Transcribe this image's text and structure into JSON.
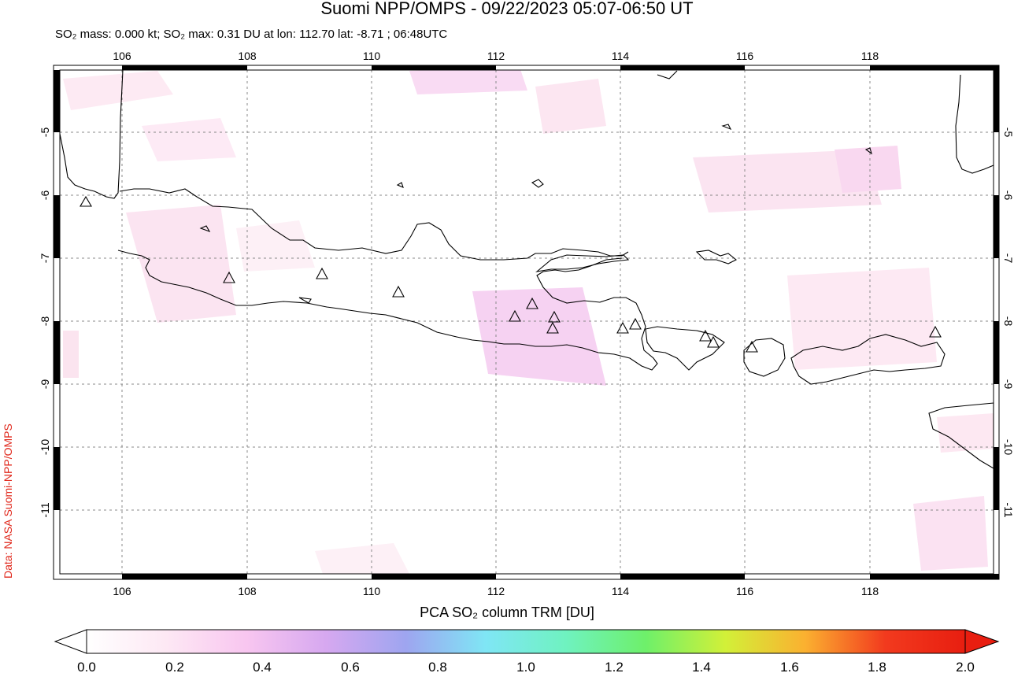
{
  "header": {
    "title": "Suomi NPP/OMPS - 09/22/2023 05:07-06:50 UT",
    "subtitle": "SO₂ mass: 0.000 kt; SO₂ max: 0.31 DU at lon: 112.70 lat: -8.71 ; 06:48UTC"
  },
  "credit": "Data: NASA Suomi-NPP/OMPS",
  "map": {
    "lon_range": [
      104.9,
      120.0
    ],
    "lat_range": [
      -12.0,
      -4.0
    ],
    "lon_ticks": [
      "106",
      "108",
      "110",
      "112",
      "114",
      "116",
      "118"
    ],
    "lat_ticks": [
      "-5",
      "-6",
      "-7",
      "-8",
      "-9",
      "-10",
      "-11"
    ],
    "coastline_color": "#000000",
    "grid": "dotted",
    "volcano_marker": "triangle-icon"
  },
  "colorbar": {
    "title": "PCA SO₂ column TRM [DU]",
    "ticks": [
      "0.0",
      "0.2",
      "0.4",
      "0.6",
      "0.8",
      "1.0",
      "1.2",
      "1.4",
      "1.6",
      "1.8",
      "2.0"
    ],
    "colors": [
      "#ffffff",
      "#fde8f4",
      "#f8c6f0",
      "#d6a8f0",
      "#9ea5f0",
      "#7fe6f5",
      "#6ff2c0",
      "#6ef06a",
      "#d2f038",
      "#fbb030",
      "#f23a1e",
      "#e81e10"
    ]
  }
}
